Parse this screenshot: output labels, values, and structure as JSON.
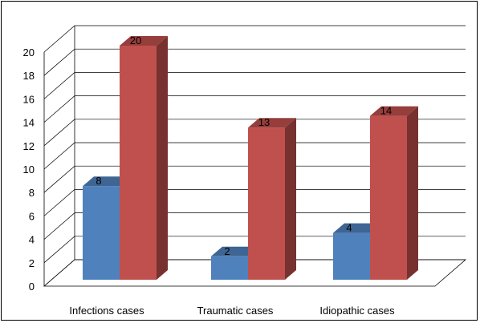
{
  "chart_data": {
    "type": "bar",
    "three_d": true,
    "categories": [
      "Infections cases",
      "Traumatic cases",
      "Idiopathic cases"
    ],
    "series": [
      {
        "values": [
          8,
          2,
          4
        ],
        "color": "#4F81BD"
      },
      {
        "values": [
          20,
          13,
          14
        ],
        "color": "#C0504D"
      }
    ],
    "data_labels": true,
    "ylim": [
      0,
      20
    ],
    "yticks": [
      0,
      2,
      4,
      6,
      8,
      10,
      12,
      14,
      16,
      18,
      20
    ],
    "grid": true,
    "legend": "none"
  }
}
